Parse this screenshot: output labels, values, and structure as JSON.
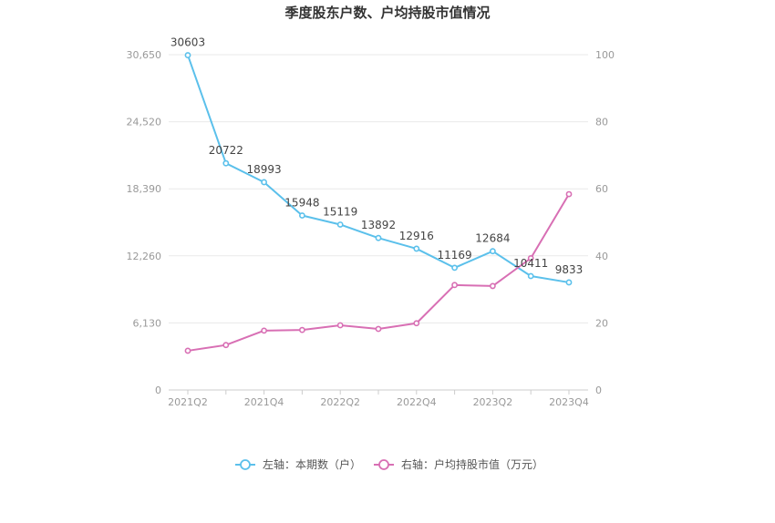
{
  "chart_data": {
    "type": "line",
    "title": "季度股东户数、户均持股市值情况",
    "categories": [
      "2021Q2",
      "2021Q3",
      "2021Q4",
      "2022Q1",
      "2022Q2",
      "2022Q3",
      "2022Q4",
      "2023Q1",
      "2023Q2",
      "2023Q3",
      "2023Q4"
    ],
    "x_tick_labels": [
      "2021Q2",
      "2021Q4",
      "2022Q2",
      "2022Q4",
      "2023Q2",
      "2023Q4"
    ],
    "left_axis": {
      "ticks": [
        "0",
        "6,130",
        "12,260",
        "18,390",
        "24,520",
        "30,650"
      ],
      "ylim": [
        0,
        30650
      ]
    },
    "right_axis": {
      "ticks": [
        "0",
        "20",
        "40",
        "60",
        "80",
        "100"
      ],
      "ylim": [
        0,
        100
      ]
    },
    "series": [
      {
        "name": "左轴：本期数（户）",
        "axis": "left",
        "color": "#5bc0eb",
        "values": [
          30603,
          20722,
          18993,
          15948,
          15119,
          13892,
          12916,
          11169,
          12684,
          10411,
          9833
        ],
        "labels": [
          "30603",
          "20722",
          "18993",
          "15948",
          "15119",
          "13892",
          "12916",
          "11169",
          "12684",
          "10411",
          "9833"
        ]
      },
      {
        "name": "右轴：户均持股市值（万元）",
        "axis": "right",
        "color": "#d86fb4",
        "values": [
          11.7,
          13.4,
          17.7,
          17.9,
          19.3,
          18.2,
          19.9,
          31.3,
          31.0,
          39.3,
          58.4
        ]
      }
    ],
    "grid": true,
    "legend_position": "bottom-center"
  }
}
